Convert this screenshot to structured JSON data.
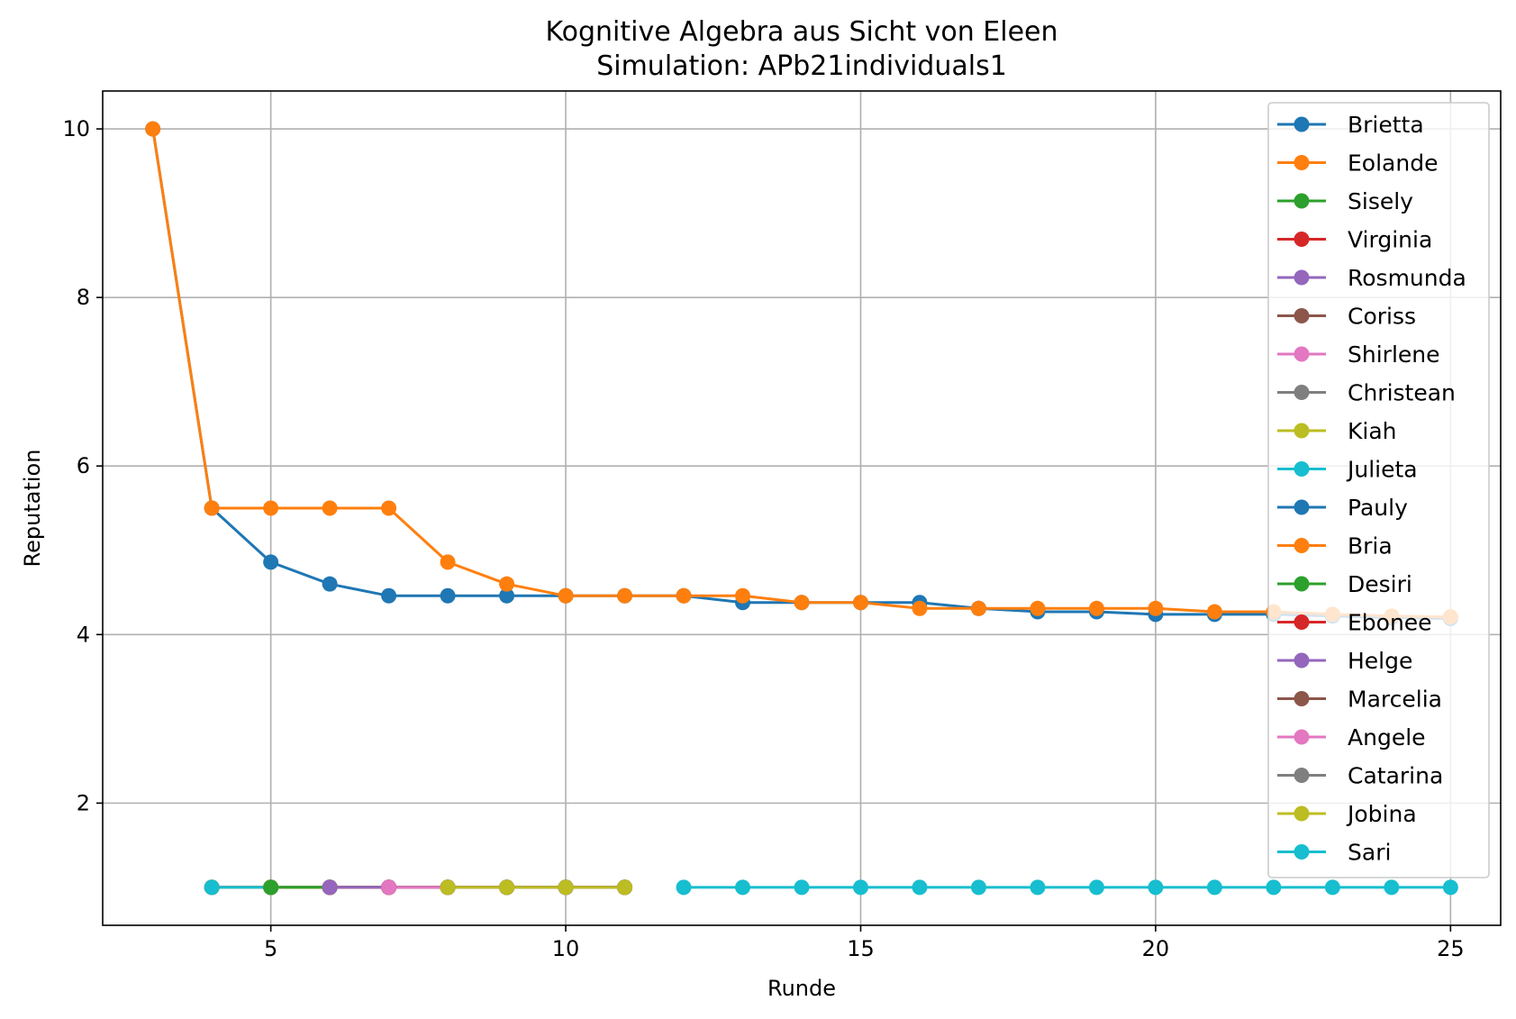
{
  "chart_data": {
    "type": "line",
    "title": "Kognitive Algebra aus Sicht von Eleen",
    "subtitle": "Simulation: APb21individuals1",
    "xlabel": "Runde",
    "ylabel": "Reputation",
    "xlim": [
      2.15,
      25.85
    ],
    "ylim": [
      0.55,
      10.45
    ],
    "xticks": [
      "5",
      "10",
      "15",
      "20",
      "25"
    ],
    "yticks": [
      "2",
      "4",
      "6",
      "8",
      "10"
    ],
    "grid": true,
    "legend_position": "top-right",
    "series": [
      {
        "name": "Brietta",
        "color": "#1f77b4",
        "x": [
          3,
          4,
          5,
          6,
          7,
          8,
          9,
          10,
          11,
          12,
          13,
          14,
          15,
          16,
          17,
          18,
          19,
          20,
          21,
          22,
          23,
          24,
          25
        ],
        "y": [
          10,
          5.5,
          4.86,
          4.6,
          4.46,
          4.46,
          4.46,
          4.46,
          4.46,
          4.46,
          4.38,
          4.38,
          4.38,
          4.38,
          4.31,
          4.27,
          4.27,
          4.24,
          4.24,
          4.24,
          4.22,
          4.2,
          4.19
        ]
      },
      {
        "name": "Eolande",
        "color": "#ff7f0e",
        "x": [
          3,
          4,
          5,
          6,
          7,
          8,
          9,
          10,
          11,
          12,
          13,
          14,
          15,
          16,
          17,
          18,
          19,
          20,
          21,
          22,
          23,
          24,
          25
        ],
        "y": [
          10,
          5.5,
          5.5,
          5.5,
          5.5,
          4.86,
          4.6,
          4.46,
          4.46,
          4.46,
          4.46,
          4.38,
          4.38,
          4.31,
          4.31,
          4.31,
          4.31,
          4.31,
          4.27,
          4.27,
          4.24,
          4.22,
          4.21
        ]
      },
      {
        "name": "Sisely",
        "color": "#2ca02c",
        "x": [
          4,
          5,
          6,
          7,
          8,
          9,
          10,
          11
        ],
        "y": [
          1,
          1,
          1,
          1,
          1,
          1,
          1,
          1
        ]
      },
      {
        "name": "Virginia",
        "color": "#d62728",
        "x": [
          4,
          5,
          6,
          7,
          8,
          9,
          10,
          11
        ],
        "y": [
          1,
          1,
          1,
          1,
          1,
          1,
          1,
          1
        ]
      },
      {
        "name": "Rosmunda",
        "color": "#9467bd",
        "x": [
          4,
          5,
          6,
          7,
          8,
          9,
          10,
          11
        ],
        "y": [
          1,
          1,
          1,
          1,
          1,
          1,
          1,
          1
        ]
      },
      {
        "name": "Coriss",
        "color": "#8c564b",
        "x": [
          4,
          5,
          6,
          7,
          8,
          9,
          10,
          11
        ],
        "y": [
          1,
          1,
          1,
          1,
          1,
          1,
          1,
          1
        ]
      },
      {
        "name": "Shirlene",
        "color": "#e377c2",
        "x": [
          4,
          5,
          6,
          7,
          8,
          9,
          10,
          11
        ],
        "y": [
          1,
          1,
          1,
          1,
          1,
          1,
          1,
          1
        ]
      },
      {
        "name": "Christean",
        "color": "#7f7f7f",
        "x": [
          4,
          5,
          6,
          7,
          8,
          9,
          10,
          11
        ],
        "y": [
          1,
          1,
          1,
          1,
          1,
          1,
          1,
          1
        ]
      },
      {
        "name": "Kiah",
        "color": "#bcbd22",
        "x": [
          4,
          5,
          6,
          7,
          8,
          9,
          10,
          11
        ],
        "y": [
          1,
          1,
          1,
          1,
          1,
          1,
          1,
          1
        ]
      },
      {
        "name": "Julieta",
        "color": "#17becf",
        "x": [
          4,
          5,
          6,
          7,
          8,
          9,
          10,
          11
        ],
        "y": [
          1,
          1,
          1,
          1,
          1,
          1,
          1,
          1
        ]
      },
      {
        "name": "Pauly",
        "color": "#1f77b4",
        "x": [
          5,
          6,
          7,
          8,
          9,
          10,
          11
        ],
        "y": [
          1,
          1,
          1,
          1,
          1,
          1,
          1
        ]
      },
      {
        "name": "Bria",
        "color": "#ff7f0e",
        "x": [
          5,
          6,
          7,
          8,
          9,
          10,
          11
        ],
        "y": [
          1,
          1,
          1,
          1,
          1,
          1,
          1
        ]
      },
      {
        "name": "Desiri",
        "color": "#2ca02c",
        "x": [
          5,
          6,
          7,
          8,
          9,
          10,
          11
        ],
        "y": [
          1,
          1,
          1,
          1,
          1,
          1,
          1
        ]
      },
      {
        "name": "Ebonee",
        "color": "#d62728",
        "x": [
          6,
          7,
          8,
          9,
          10,
          11
        ],
        "y": [
          1,
          1,
          1,
          1,
          1,
          1
        ]
      },
      {
        "name": "Helge",
        "color": "#9467bd",
        "x": [
          6,
          7,
          8,
          9,
          10,
          11
        ],
        "y": [
          1,
          1,
          1,
          1,
          1,
          1
        ]
      },
      {
        "name": "Marcelia",
        "color": "#8c564b",
        "x": [
          7,
          8,
          9,
          10,
          11
        ],
        "y": [
          1,
          1,
          1,
          1,
          1
        ]
      },
      {
        "name": "Angele",
        "color": "#e377c2",
        "x": [
          7,
          8,
          9,
          10,
          11
        ],
        "y": [
          1,
          1,
          1,
          1,
          1
        ]
      },
      {
        "name": "Catarina",
        "color": "#7f7f7f",
        "x": [
          8,
          9,
          10,
          11
        ],
        "y": [
          1,
          1,
          1,
          1
        ]
      },
      {
        "name": "Jobina",
        "color": "#bcbd22",
        "x": [
          8,
          9,
          10,
          11
        ],
        "y": [
          1,
          1,
          1,
          1
        ]
      },
      {
        "name": "Sari",
        "color": "#17becf",
        "x": [
          12,
          13,
          14,
          15,
          16,
          17,
          18,
          19,
          20,
          21,
          22,
          23,
          24,
          25
        ],
        "y": [
          1,
          1,
          1,
          1,
          1,
          1,
          1,
          1,
          1,
          1,
          1,
          1,
          1,
          1
        ]
      }
    ]
  }
}
